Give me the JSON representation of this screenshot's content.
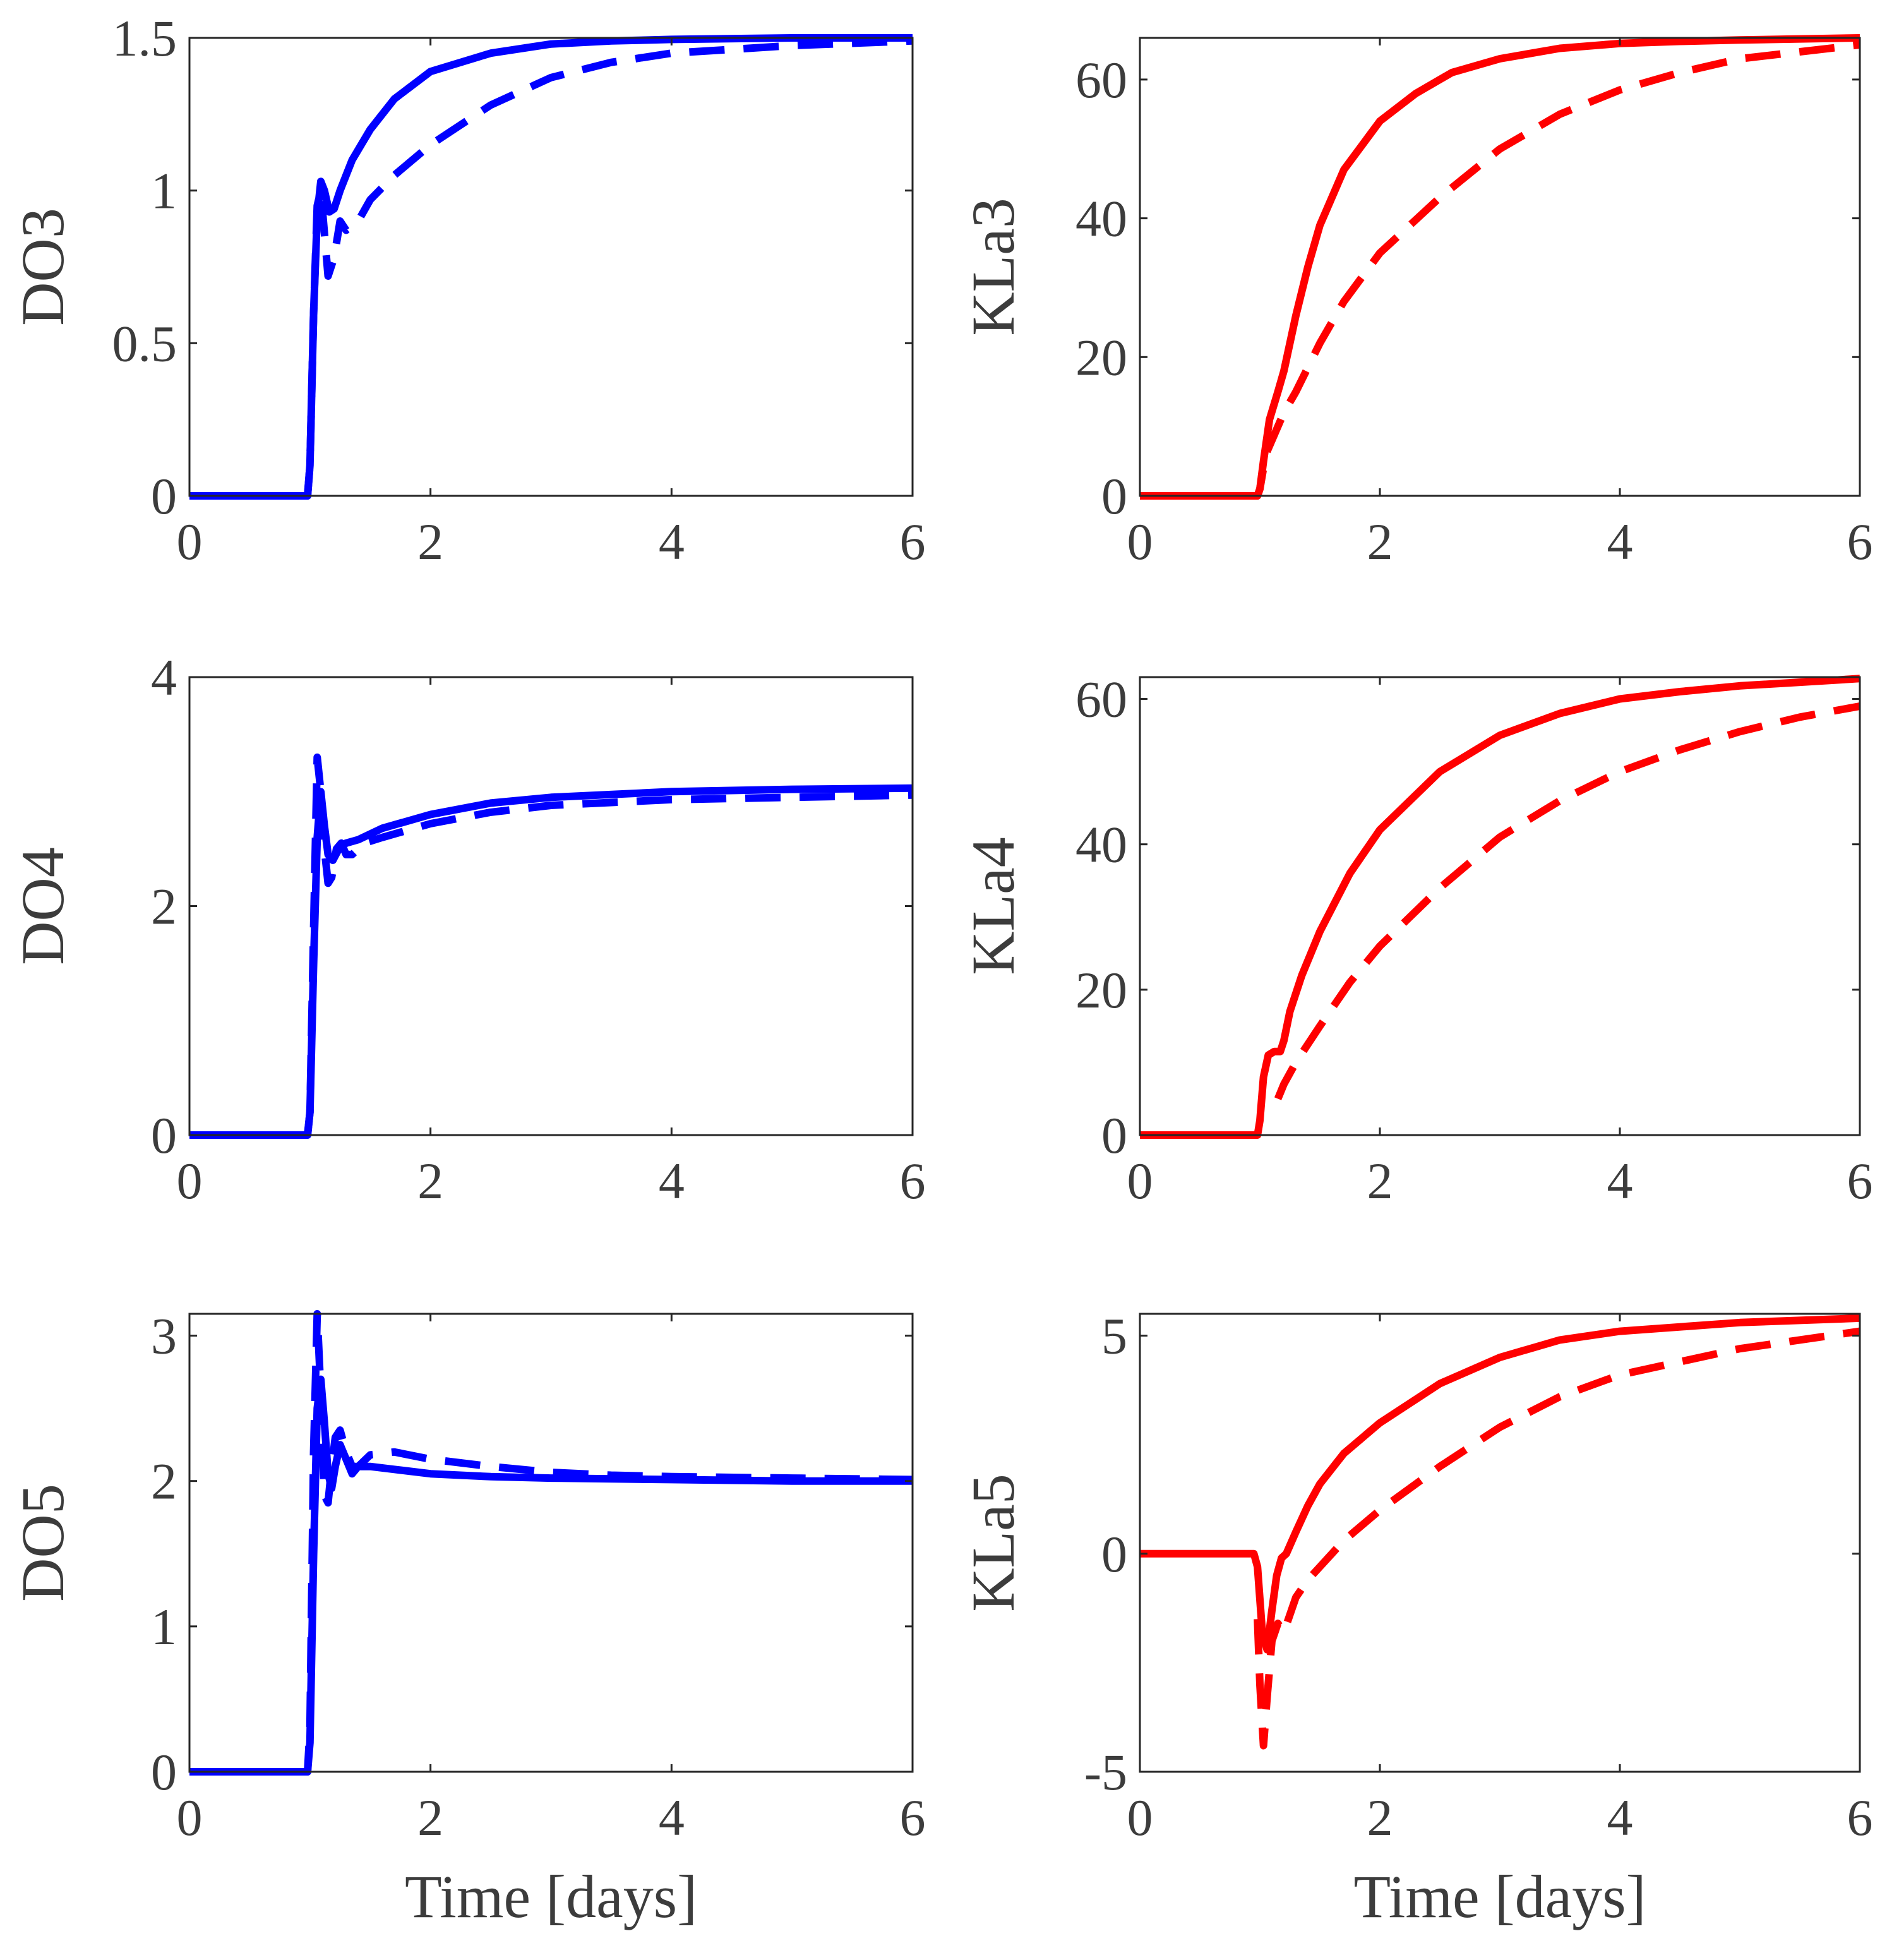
{
  "chart_data": [
    {
      "id": "do3",
      "type": "line",
      "title": "",
      "xlabel": "",
      "ylabel": "DO3",
      "xlim": [
        0,
        6
      ],
      "ylim": [
        0,
        1.5
      ],
      "xticks": [
        0,
        2,
        4,
        6
      ],
      "yticks": [
        0,
        0.5,
        1,
        1.5
      ],
      "xtick_labels": [
        "0",
        "2",
        "4",
        "6"
      ],
      "ytick_labels": [
        "0",
        "0.5",
        "1",
        "1.5"
      ],
      "grid": false,
      "color": "#0000ff",
      "series": [
        {
          "name": "solid",
          "style": "solid",
          "x": [
            0,
            0.98,
            1.0,
            1.03,
            1.06,
            1.09,
            1.12,
            1.16,
            1.2,
            1.25,
            1.35,
            1.5,
            1.7,
            2.0,
            2.5,
            3.0,
            3.5,
            4.0,
            5.0,
            6.0
          ],
          "y": [
            0,
            0,
            0.1,
            0.6,
            0.92,
            1.03,
            1.0,
            0.93,
            0.94,
            1.0,
            1.1,
            1.2,
            1.3,
            1.39,
            1.45,
            1.48,
            1.49,
            1.495,
            1.5,
            1.5
          ]
        },
        {
          "name": "dashed",
          "style": "dashed",
          "x": [
            0,
            0.98,
            1.0,
            1.03,
            1.06,
            1.09,
            1.12,
            1.15,
            1.2,
            1.25,
            1.3,
            1.4,
            1.5,
            1.7,
            2.0,
            2.5,
            3.0,
            3.5,
            4.0,
            5.0,
            6.0
          ],
          "y": [
            0,
            0,
            0.1,
            0.6,
            0.95,
            1.0,
            0.86,
            0.72,
            0.78,
            0.9,
            0.87,
            0.9,
            0.97,
            1.05,
            1.15,
            1.28,
            1.37,
            1.42,
            1.45,
            1.475,
            1.49
          ]
        }
      ]
    },
    {
      "id": "kla3",
      "type": "line",
      "title": "",
      "xlabel": "",
      "ylabel": "KLa3",
      "xlim": [
        0,
        6
      ],
      "ylim": [
        0,
        66
      ],
      "xticks": [
        0,
        2,
        4,
        6
      ],
      "yticks": [
        0,
        20,
        40,
        60
      ],
      "xtick_labels": [
        "0",
        "2",
        "4",
        "6"
      ],
      "ytick_labels": [
        "0",
        "20",
        "40",
        "60"
      ],
      "grid": false,
      "color": "#ff0000",
      "series": [
        {
          "name": "solid",
          "style": "solid",
          "x": [
            0,
            0.98,
            1.0,
            1.03,
            1.08,
            1.15,
            1.2,
            1.3,
            1.4,
            1.5,
            1.7,
            2.0,
            2.3,
            2.6,
            3.0,
            3.5,
            4.0,
            4.5,
            5.0,
            6.0
          ],
          "y": [
            0,
            0,
            1,
            5,
            11,
            15,
            18,
            26,
            33,
            39,
            47,
            54,
            58,
            61,
            63,
            64.5,
            65.2,
            65.5,
            65.7,
            66
          ]
        },
        {
          "name": "dashed",
          "style": "dashed",
          "x": [
            0,
            0.98,
            1.0,
            1.05,
            1.1,
            1.2,
            1.3,
            1.5,
            1.7,
            2.0,
            2.5,
            3.0,
            3.5,
            4.0,
            4.5,
            5.0,
            5.5,
            6.0
          ],
          "y": [
            0,
            0,
            1,
            6,
            8,
            12,
            15,
            22,
            28,
            35,
            43,
            50,
            55,
            58.5,
            61,
            63,
            64,
            65
          ]
        }
      ]
    },
    {
      "id": "do4",
      "type": "line",
      "title": "",
      "xlabel": "",
      "ylabel": "DO4",
      "xlim": [
        0,
        6
      ],
      "ylim": [
        0,
        4
      ],
      "xticks": [
        0,
        2,
        4,
        6
      ],
      "yticks": [
        0,
        2,
        4
      ],
      "xtick_labels": [
        "0",
        "2",
        "4",
        "6"
      ],
      "ytick_labels": [
        "0",
        "2",
        "4"
      ],
      "grid": false,
      "color": "#0000ff",
      "series": [
        {
          "name": "solid",
          "style": "solid",
          "x": [
            0,
            0.98,
            1.0,
            1.03,
            1.06,
            1.09,
            1.12,
            1.15,
            1.19,
            1.24,
            1.3,
            1.4,
            1.6,
            2.0,
            2.5,
            3.0,
            4.0,
            5.0,
            6.0
          ],
          "y": [
            0,
            0,
            0.2,
            1.5,
            2.6,
            3.0,
            2.7,
            2.45,
            2.4,
            2.5,
            2.55,
            2.58,
            2.68,
            2.8,
            2.9,
            2.95,
            3.0,
            3.02,
            3.03
          ]
        },
        {
          "name": "dashed",
          "style": "dashed",
          "x": [
            0,
            0.98,
            1.0,
            1.03,
            1.06,
            1.09,
            1.12,
            1.15,
            1.18,
            1.22,
            1.26,
            1.3,
            1.35,
            1.45,
            1.6,
            2.0,
            2.5,
            3.0,
            4.0,
            5.0,
            6.0
          ],
          "y": [
            0,
            0,
            0.2,
            1.8,
            3.3,
            3.0,
            2.5,
            2.2,
            2.25,
            2.5,
            2.55,
            2.45,
            2.45,
            2.55,
            2.6,
            2.72,
            2.82,
            2.88,
            2.93,
            2.95,
            2.97
          ]
        }
      ]
    },
    {
      "id": "kla4",
      "type": "line",
      "title": "",
      "xlabel": "",
      "ylabel": "KLa4",
      "xlim": [
        0,
        6
      ],
      "ylim": [
        0,
        63
      ],
      "xticks": [
        0,
        2,
        4,
        6
      ],
      "yticks": [
        0,
        20,
        40,
        60
      ],
      "xtick_labels": [
        "0",
        "2",
        "4",
        "6"
      ],
      "ytick_labels": [
        "0",
        "20",
        "40",
        "60"
      ],
      "grid": false,
      "color": "#ff0000",
      "series": [
        {
          "name": "solid",
          "style": "solid",
          "x": [
            0,
            0.98,
            1.0,
            1.03,
            1.07,
            1.12,
            1.17,
            1.2,
            1.25,
            1.35,
            1.5,
            1.75,
            2.0,
            2.5,
            3.0,
            3.5,
            4.0,
            4.5,
            5.0,
            5.5,
            6.0
          ],
          "y": [
            0,
            0,
            2,
            8,
            11,
            11.5,
            11.5,
            13,
            17,
            22,
            28,
            36,
            42,
            50,
            55,
            58,
            60,
            61,
            61.8,
            62.3,
            62.8
          ]
        },
        {
          "name": "dashed",
          "style": "dashed",
          "x": [
            1.15,
            1.2,
            1.3,
            1.5,
            1.75,
            2.0,
            2.5,
            3.0,
            3.5,
            4.0,
            4.5,
            5.0,
            5.5,
            6.0
          ],
          "y": [
            5,
            7,
            10,
            15,
            21,
            26,
            34,
            41,
            46,
            50,
            53,
            55.5,
            57.5,
            59
          ]
        }
      ]
    },
    {
      "id": "do5",
      "type": "line",
      "title": "",
      "xlabel": "Time [days]",
      "ylabel": "DO5",
      "xlim": [
        0,
        6
      ],
      "ylim": [
        0,
        3.15
      ],
      "xticks": [
        0,
        2,
        4,
        6
      ],
      "yticks": [
        0,
        1,
        2,
        3
      ],
      "xtick_labels": [
        "0",
        "2",
        "4",
        "6"
      ],
      "ytick_labels": [
        "0",
        "1",
        "2",
        "3"
      ],
      "grid": false,
      "color": "#0000ff",
      "series": [
        {
          "name": "solid",
          "style": "solid",
          "x": [
            0,
            0.98,
            1.0,
            1.03,
            1.06,
            1.09,
            1.12,
            1.15,
            1.18,
            1.21,
            1.25,
            1.3,
            1.35,
            1.4,
            1.5,
            1.7,
            2.0,
            2.5,
            3.0,
            4.0,
            5.0,
            6.0
          ],
          "y": [
            0,
            0,
            0.2,
            1.5,
            2.5,
            2.7,
            2.4,
            2.05,
            1.95,
            2.1,
            2.25,
            2.15,
            2.05,
            2.1,
            2.1,
            2.08,
            2.05,
            2.03,
            2.02,
            2.01,
            2.0,
            2.0
          ]
        },
        {
          "name": "dashed",
          "style": "dashed",
          "x": [
            0,
            0.98,
            1.0,
            1.03,
            1.06,
            1.09,
            1.12,
            1.15,
            1.18,
            1.21,
            1.25,
            1.3,
            1.35,
            1.4,
            1.5,
            1.7,
            2.0,
            2.5,
            3.0,
            3.5,
            4.0,
            5.0,
            6.0
          ],
          "y": [
            0,
            0,
            0.3,
            2.2,
            3.15,
            2.6,
            1.9,
            1.85,
            2.1,
            2.3,
            2.35,
            2.2,
            2.1,
            2.1,
            2.18,
            2.2,
            2.15,
            2.1,
            2.06,
            2.04,
            2.03,
            2.02,
            2.01
          ]
        }
      ]
    },
    {
      "id": "kla5",
      "type": "line",
      "title": "",
      "xlabel": "Time [days]",
      "ylabel": "KLa5",
      "xlim": [
        0,
        6
      ],
      "ylim": [
        -5,
        5.5
      ],
      "xticks": [
        0,
        2,
        4,
        6
      ],
      "yticks": [
        -5,
        0,
        5
      ],
      "xtick_labels": [
        "0",
        "2",
        "4",
        "6"
      ],
      "ytick_labels": [
        "-5",
        "0",
        "5"
      ],
      "grid": false,
      "color": "#ff0000",
      "series": [
        {
          "name": "solid",
          "style": "solid",
          "x": [
            0,
            0.95,
            0.98,
            1.02,
            1.06,
            1.1,
            1.14,
            1.18,
            1.22,
            1.3,
            1.4,
            1.5,
            1.7,
            2.0,
            2.5,
            3.0,
            3.5,
            4.0,
            5.0,
            6.0
          ],
          "y": [
            0,
            0,
            -0.3,
            -1.8,
            -2.2,
            -1.3,
            -0.5,
            -0.1,
            0,
            0.5,
            1.1,
            1.6,
            2.3,
            3.0,
            3.9,
            4.5,
            4.9,
            5.1,
            5.3,
            5.4
          ]
        },
        {
          "name": "dashed",
          "style": "dashed",
          "x": [
            0.98,
            1.0,
            1.03,
            1.06,
            1.1,
            1.15,
            1.2,
            1.25,
            1.3,
            1.4,
            1.5,
            1.7,
            2.0,
            2.5,
            3.0,
            3.5,
            4.0,
            5.0,
            6.0
          ],
          "y": [
            -1.5,
            -3.0,
            -4.4,
            -3.3,
            -2.0,
            -1.6,
            -1.8,
            -1.4,
            -1.0,
            -0.6,
            -0.3,
            0.3,
            1.0,
            2.0,
            2.9,
            3.6,
            4.1,
            4.7,
            5.1
          ]
        }
      ]
    }
  ]
}
